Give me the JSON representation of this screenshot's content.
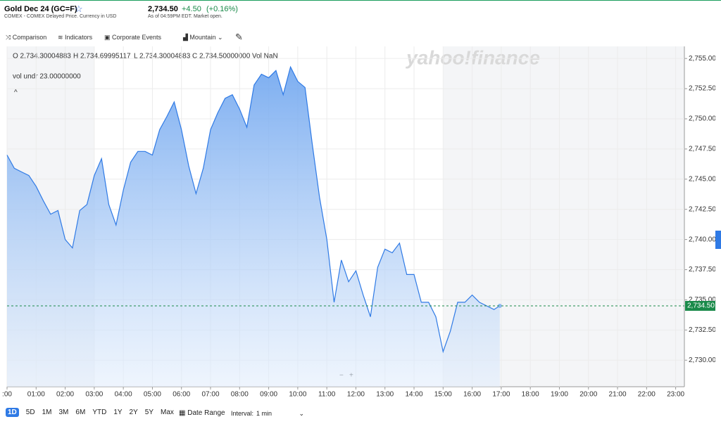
{
  "header": {
    "symbol": "Gold Dec 24 (GC=F)",
    "exchange": "COMEX - COMEX Delayed Price. Currency in USD",
    "price": "2,734.50",
    "change": "+4.50",
    "change_pct": "(+0.16%)",
    "as_of": "As of 04:59PM EDT. Market open."
  },
  "toolbar": [
    "Comparison",
    "Indicators",
    "Corporate Events",
    "Mountain"
  ],
  "ohlc": {
    "o": "O 2,734.30004883",
    "h": "H 2,734.69995117",
    "l": "L 2,734.30004883",
    "c": "C 2,734.50000000",
    "vol": "Vol NaN",
    "vol_undr": "vol undr  23.00000000"
  },
  "watermark": "yahoo!finance",
  "zoom": [
    "−",
    "+"
  ],
  "ranges": [
    "1D",
    "5D",
    "1M",
    "3M",
    "6M",
    "YTD",
    "1Y",
    "2Y",
    "5Y",
    "Max"
  ],
  "date_range": "Date Range",
  "interval_label": "Interval:",
  "interval": "1 min",
  "chart_data": {
    "type": "area",
    "color": "#2f7ae5",
    "x": [
      0,
      0.25,
      0.5,
      0.75,
      1,
      1.25,
      1.5,
      1.75,
      2,
      2.25,
      2.5,
      2.75,
      3,
      3.25,
      3.5,
      3.75,
      4,
      4.25,
      4.5,
      4.75,
      5,
      5.25,
      5.5,
      5.75,
      6,
      6.25,
      6.5,
      6.75,
      7,
      7.25,
      7.5,
      7.75,
      8,
      8.25,
      8.5,
      8.75,
      9,
      9.25,
      9.5,
      9.75,
      10,
      10.25,
      10.5,
      10.75,
      11,
      11.25,
      11.5,
      11.75,
      12,
      12.25,
      12.5,
      12.75,
      13,
      13.25,
      13.5,
      13.75,
      14,
      14.25,
      14.5,
      14.75,
      15,
      15.25,
      15.5,
      15.75,
      16,
      16.25,
      16.5,
      16.75,
      16.95
    ],
    "series": [
      {
        "values": [
          2747.0,
          2745.9,
          2745.6,
          2745.3,
          2744.4,
          2743.2,
          2742.1,
          2742.4,
          2740.0,
          2739.3,
          2742.4,
          2742.9,
          2745.3,
          2746.7,
          2742.9,
          2741.2,
          2744.1,
          2746.4,
          2747.3,
          2747.3,
          2747.0,
          2749.1,
          2750.2,
          2751.4,
          2749.1,
          2746.1,
          2743.8,
          2745.9,
          2749.1,
          2750.5,
          2751.7,
          2752.0,
          2750.8,
          2749.3,
          2752.8,
          2753.7,
          2753.4,
          2754.0,
          2752.0,
          2754.3,
          2753.1,
          2752.6,
          2747.9,
          2743.5,
          2740.0,
          2734.8,
          2738.3,
          2736.5,
          2737.4,
          2735.4,
          2733.6,
          2737.7,
          2739.2,
          2738.9,
          2739.7,
          2737.1,
          2737.1,
          2734.8,
          2734.8,
          2733.6,
          2730.7,
          2732.4,
          2734.8,
          2734.8,
          2735.4,
          2734.8,
          2734.5,
          2734.2,
          2734.5
        ]
      }
    ],
    "xlim": [
      0,
      23.3
    ],
    "xticks": [
      {
        "value": 0,
        "label": ":00"
      },
      {
        "value": 1,
        "label": "01:00"
      },
      {
        "value": 2,
        "label": "02:00"
      },
      {
        "value": 3,
        "label": "03:00"
      },
      {
        "value": 4,
        "label": "04:00"
      },
      {
        "value": 5,
        "label": "05:00"
      },
      {
        "value": 6,
        "label": "06:00"
      },
      {
        "value": 7,
        "label": "07:00"
      },
      {
        "value": 8,
        "label": "08:00"
      },
      {
        "value": 9,
        "label": "09:00"
      },
      {
        "value": 10,
        "label": "10:00"
      },
      {
        "value": 11,
        "label": "11:00"
      },
      {
        "value": 12,
        "label": "12:00"
      },
      {
        "value": 13,
        "label": "13:00"
      },
      {
        "value": 14,
        "label": "14:00"
      },
      {
        "value": 15,
        "label": "15:00"
      },
      {
        "value": 16,
        "label": "16:00"
      },
      {
        "value": 17,
        "label": "17:00"
      },
      {
        "value": 18,
        "label": "18:00"
      },
      {
        "value": 19,
        "label": "19:00"
      },
      {
        "value": 20,
        "label": "20:00"
      },
      {
        "value": 21,
        "label": "21:00"
      },
      {
        "value": 22,
        "label": "22:00"
      },
      {
        "value": 23,
        "label": "23:00"
      }
    ],
    "ylim": [
      2727.8,
      2756
    ],
    "yticks": [
      {
        "value": 2730,
        "label": "2,730.00"
      },
      {
        "value": 2732.5,
        "label": "2,732.50"
      },
      {
        "value": 2735,
        "label": "2,735.00"
      },
      {
        "value": 2737.5,
        "label": "2,737.50"
      },
      {
        "value": 2740,
        "label": "2,740.00"
      },
      {
        "value": 2742.5,
        "label": "2,742.50"
      },
      {
        "value": 2745,
        "label": "2,745.00"
      },
      {
        "value": 2747.5,
        "label": "2,747.50"
      },
      {
        "value": 2750,
        "label": "2,750.00"
      },
      {
        "value": 2752.5,
        "label": "2,752.50"
      },
      {
        "value": 2755,
        "label": "2,755.00"
      }
    ],
    "grid": true,
    "last_price": {
      "value": 2734.5,
      "label": "2,734.50"
    }
  }
}
